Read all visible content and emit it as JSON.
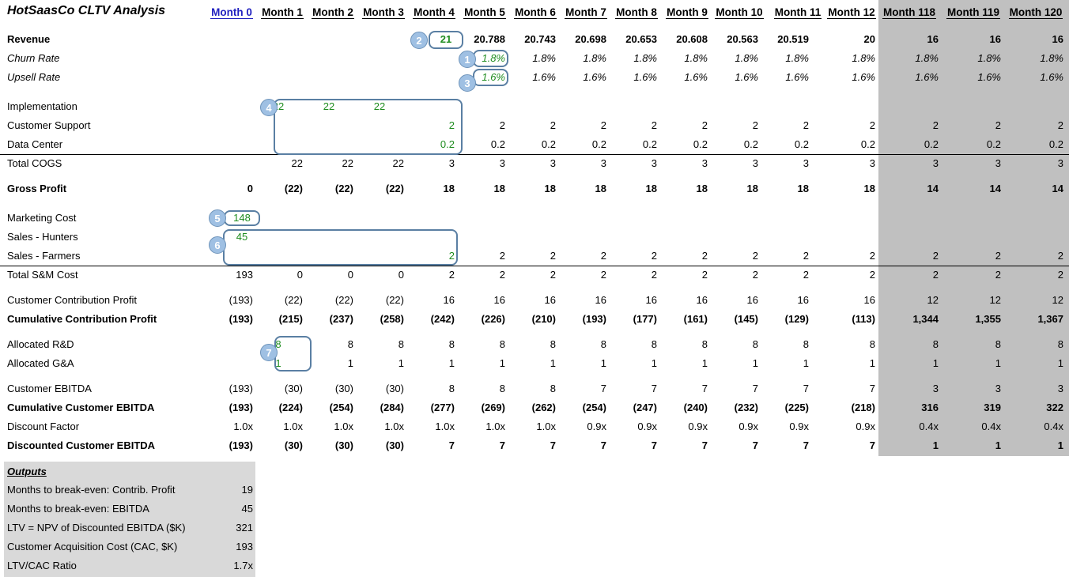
{
  "title": "HotSaasCo CLTV Analysis",
  "months": [
    "Month 0",
    "Month 1",
    "Month 2",
    "Month 3",
    "Month 4",
    "Month 5",
    "Month 6",
    "Month 7",
    "Month 8",
    "Month 9",
    "Month 10",
    "Month 11",
    "Month 12",
    "Month 118",
    "Month 119",
    "Month 120"
  ],
  "rows": [
    {
      "label": "Revenue",
      "style": "b",
      "values": [
        "",
        "",
        "",
        "",
        "21",
        "20.788",
        "20.743",
        "20.698",
        "20.653",
        "20.608",
        "20.563",
        "20.519",
        "20",
        "16",
        "16",
        "16"
      ],
      "green": [
        4
      ]
    },
    {
      "label": "Churn Rate",
      "style": "i",
      "values": [
        "",
        "",
        "",
        "",
        "",
        "1.8%",
        "1.8%",
        "1.8%",
        "1.8%",
        "1.8%",
        "1.8%",
        "1.8%",
        "1.8%",
        "1.8%",
        "1.8%",
        "1.8%"
      ],
      "green": [
        5
      ]
    },
    {
      "label": "Upsell Rate",
      "style": "i",
      "values": [
        "",
        "",
        "",
        "",
        "",
        "1.6%",
        "1.6%",
        "1.6%",
        "1.6%",
        "1.6%",
        "1.6%",
        "1.6%",
        "1.6%",
        "1.6%",
        "1.6%",
        "1.6%"
      ],
      "green": [
        5
      ]
    },
    {
      "label": "Implementation",
      "style": "",
      "values": [
        "",
        "22",
        "22",
        "22",
        "",
        "",
        "",
        "",
        "",
        "",
        "",
        "",
        "",
        "",
        "",
        ""
      ],
      "green": [
        1,
        2,
        3
      ],
      "center": [
        1,
        2,
        3
      ]
    },
    {
      "label": "Customer Support",
      "style": "",
      "values": [
        "",
        "",
        "",
        "",
        "2",
        "2",
        "2",
        "2",
        "2",
        "2",
        "2",
        "2",
        "2",
        "2",
        "2",
        "2"
      ],
      "green": [
        4
      ]
    },
    {
      "label": "Data Center",
      "style": "",
      "values": [
        "",
        "",
        "",
        "",
        "0.2",
        "0.2",
        "0.2",
        "0.2",
        "0.2",
        "0.2",
        "0.2",
        "0.2",
        "0.2",
        "0.2",
        "0.2",
        "0.2"
      ],
      "green": [
        4
      ]
    },
    {
      "label": "Total COGS",
      "style": "",
      "values": [
        "",
        "22",
        "22",
        "22",
        "3",
        "3",
        "3",
        "3",
        "3",
        "3",
        "3",
        "3",
        "3",
        "3",
        "3",
        "3"
      ]
    },
    {
      "label": "Gross Profit",
      "style": "b",
      "values": [
        "0",
        "(22)",
        "(22)",
        "(22)",
        "18",
        "18",
        "18",
        "18",
        "18",
        "18",
        "18",
        "18",
        "18",
        "14",
        "14",
        "14"
      ]
    },
    {
      "label": "Marketing Cost",
      "style": "",
      "values": [
        "148",
        "",
        "",
        "",
        "",
        "",
        "",
        "",
        "",
        "",
        "",
        "",
        "",
        "",
        "",
        ""
      ],
      "green": [
        0
      ]
    },
    {
      "label": "Sales - Hunters",
      "style": "",
      "values": [
        "45",
        "",
        "",
        "",
        "",
        "",
        "",
        "",
        "",
        "",
        "",
        "",
        "",
        "",
        "",
        ""
      ],
      "green": [
        0
      ]
    },
    {
      "label": "Sales - Farmers",
      "style": "",
      "values": [
        "",
        "",
        "",
        "",
        "2",
        "2",
        "2",
        "2",
        "2",
        "2",
        "2",
        "2",
        "2",
        "2",
        "2",
        "2"
      ],
      "green": [
        4
      ]
    },
    {
      "label": "Total S&M Cost",
      "style": "",
      "values": [
        "193",
        "0",
        "0",
        "0",
        "2",
        "2",
        "2",
        "2",
        "2",
        "2",
        "2",
        "2",
        "2",
        "2",
        "2",
        "2"
      ]
    },
    {
      "label": "Customer Contribution Profit",
      "style": "",
      "values": [
        "(193)",
        "(22)",
        "(22)",
        "(22)",
        "16",
        "16",
        "16",
        "16",
        "16",
        "16",
        "16",
        "16",
        "16",
        "12",
        "12",
        "12"
      ]
    },
    {
      "label": "Cumulative Contribution Profit",
      "style": "b",
      "values": [
        "(193)",
        "(215)",
        "(237)",
        "(258)",
        "(242)",
        "(226)",
        "(210)",
        "(193)",
        "(177)",
        "(161)",
        "(145)",
        "(129)",
        "(113)",
        "1,344",
        "1,355",
        "1,367"
      ]
    },
    {
      "label": "Allocated R&D",
      "style": "",
      "values": [
        "",
        "8",
        "8",
        "8",
        "8",
        "8",
        "8",
        "8",
        "8",
        "8",
        "8",
        "8",
        "8",
        "8",
        "8",
        "8"
      ],
      "green": [
        1
      ],
      "center": [
        1
      ]
    },
    {
      "label": "Allocated G&A",
      "style": "",
      "values": [
        "",
        "1",
        "1",
        "1",
        "1",
        "1",
        "1",
        "1",
        "1",
        "1",
        "1",
        "1",
        "1",
        "1",
        "1",
        "1"
      ],
      "green": [
        1
      ],
      "center": [
        1
      ]
    },
    {
      "label": "Customer EBITDA",
      "style": "",
      "values": [
        "(193)",
        "(30)",
        "(30)",
        "(30)",
        "8",
        "8",
        "8",
        "7",
        "7",
        "7",
        "7",
        "7",
        "7",
        "3",
        "3",
        "3"
      ]
    },
    {
      "label": "Cumulative Customer EBITDA",
      "style": "b",
      "values": [
        "(193)",
        "(224)",
        "(254)",
        "(284)",
        "(277)",
        "(269)",
        "(262)",
        "(254)",
        "(247)",
        "(240)",
        "(232)",
        "(225)",
        "(218)",
        "316",
        "319",
        "322"
      ]
    },
    {
      "label": "Discount Factor",
      "style": "",
      "values": [
        "1.0x",
        "1.0x",
        "1.0x",
        "1.0x",
        "1.0x",
        "1.0x",
        "1.0x",
        "0.9x",
        "0.9x",
        "0.9x",
        "0.9x",
        "0.9x",
        "0.9x",
        "0.4x",
        "0.4x",
        "0.4x"
      ]
    },
    {
      "label": "Discounted Customer EBITDA",
      "style": "b",
      "values": [
        "(193)",
        "(30)",
        "(30)",
        "(30)",
        "7",
        "7",
        "7",
        "7",
        "7",
        "7",
        "7",
        "7",
        "7",
        "1",
        "1",
        "1"
      ]
    }
  ],
  "outputs": {
    "title": "Outputs",
    "items": [
      {
        "label": "Months to break-even: Contrib. Profit",
        "value": "19"
      },
      {
        "label": "Months to break-even: EBITDA",
        "value": "45"
      },
      {
        "label": "LTV = NPV of Discounted EBITDA ($K)",
        "value": "321"
      },
      {
        "label": "Customer Acquisition Cost (CAC, $K)",
        "value": "193"
      },
      {
        "label": "LTV/CAC Ratio",
        "value": "1.7x"
      }
    ]
  },
  "markers": [
    "1",
    "2",
    "3",
    "4",
    "5",
    "6",
    "7"
  ],
  "colors": {
    "input_green": "#1e8c1e",
    "header_blue": "#1f1fbf",
    "marker_fill": "#9fc0e3",
    "box_border": "#5a7fa3",
    "band_grey": "#c0c0c0",
    "outputs_grey": "#d9d9d9"
  }
}
